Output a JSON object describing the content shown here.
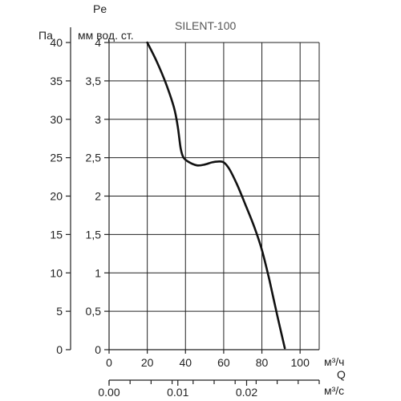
{
  "chart_data": {
    "type": "line",
    "title": "SILENT-100",
    "ylabel_symbol": "Pe",
    "ylabel_pa": "Па",
    "ylabel_mm": "мм вод. ст.",
    "xlabel_symbol": "Q",
    "xlabel_m3h": "м³/ч",
    "xlabel_m3s": "м³/с",
    "grid": true,
    "x_m3h": {
      "ticks": [
        "0",
        "20",
        "40",
        "60",
        "80",
        "100"
      ],
      "range": [
        0,
        110
      ]
    },
    "x_m3s": {
      "ticks": [
        "0.00",
        "0.01",
        "0.02"
      ],
      "values": [
        0,
        0.01,
        0.02
      ]
    },
    "y_pa": {
      "ticks": [
        "0",
        "5",
        "10",
        "15",
        "20",
        "25",
        "30",
        "35",
        "40"
      ],
      "range": [
        0,
        40
      ]
    },
    "y_mm": {
      "ticks": [
        "0",
        "0,5",
        "1",
        "1,5",
        "2",
        "2,5",
        "3",
        "3,5",
        "4"
      ],
      "range": [
        0,
        4
      ]
    },
    "series": [
      {
        "x": [
          20,
          25,
          30,
          34,
          36,
          37.5,
          39,
          42,
          46,
          50,
          54,
          57,
          60,
          63,
          67,
          72,
          76,
          80,
          84,
          88,
          92
        ],
        "y": [
          4.0,
          3.75,
          3.45,
          3.15,
          2.9,
          2.62,
          2.5,
          2.44,
          2.4,
          2.41,
          2.44,
          2.45,
          2.44,
          2.35,
          2.15,
          1.85,
          1.6,
          1.3,
          0.9,
          0.45,
          0.02
        ]
      }
    ]
  }
}
